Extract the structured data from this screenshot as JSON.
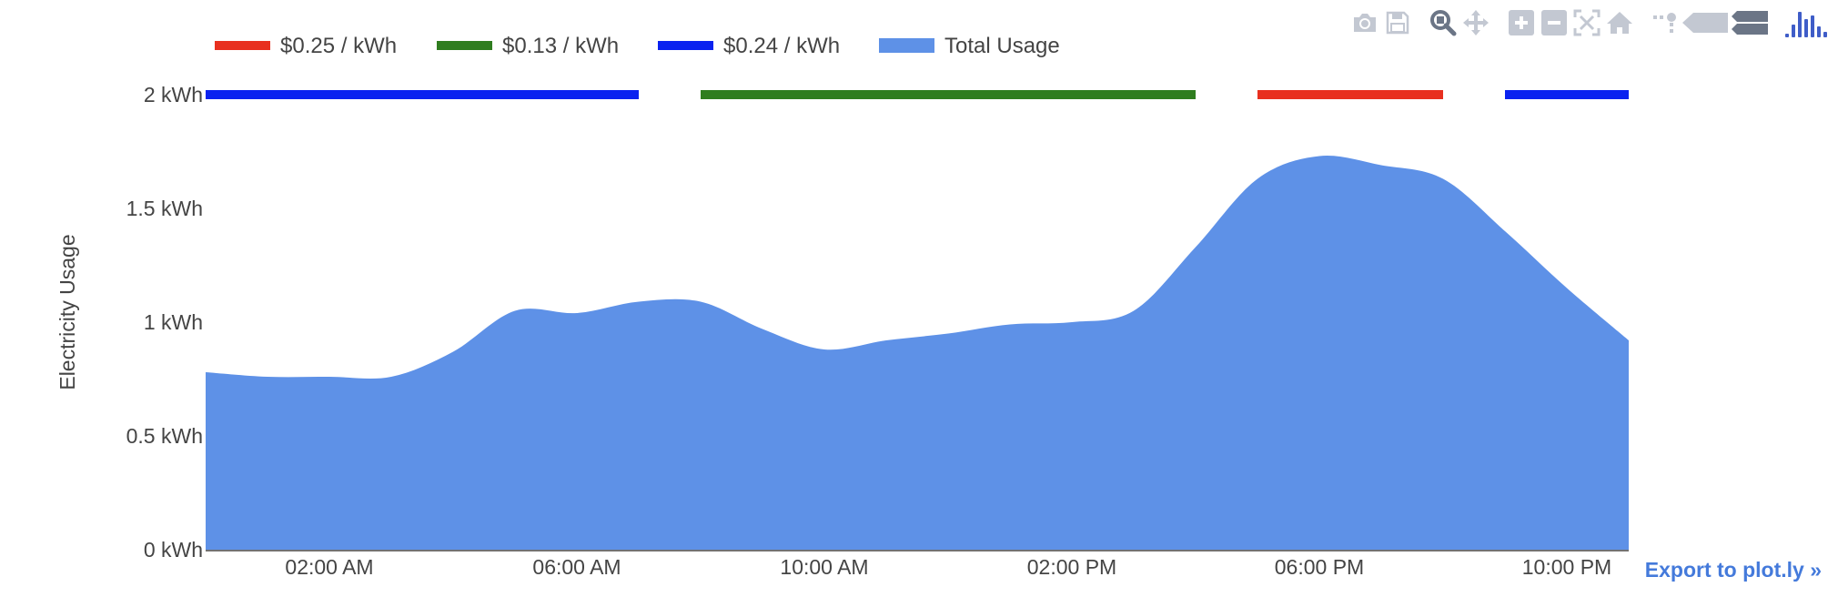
{
  "chart_data": {
    "type": "area",
    "ylabel": "Electricity Usage",
    "ylim": [
      0,
      2
    ],
    "yticks": [
      {
        "value": 0,
        "label": "0 kWh"
      },
      {
        "value": 0.5,
        "label": "0.5 kWh"
      },
      {
        "value": 1,
        "label": "1 kWh"
      },
      {
        "value": 1.5,
        "label": "1.5 kWh"
      },
      {
        "value": 2,
        "label": "2 kWh"
      }
    ],
    "xlim_hours": [
      0,
      23
    ],
    "xticks": [
      {
        "hour": 2,
        "label": "02:00 AM"
      },
      {
        "hour": 6,
        "label": "06:00 AM"
      },
      {
        "hour": 10,
        "label": "10:00 AM"
      },
      {
        "hour": 14,
        "label": "02:00 PM"
      },
      {
        "hour": 18,
        "label": "06:00 PM"
      },
      {
        "hour": 22,
        "label": "10:00 PM"
      }
    ],
    "series": [
      {
        "name": "Total Usage",
        "color": "#5e91e7",
        "x_hours": [
          0,
          1,
          2,
          3,
          4,
          5,
          6,
          7,
          8,
          9,
          10,
          11,
          12,
          13,
          14,
          15,
          16,
          17,
          18,
          19,
          20,
          21,
          22,
          23
        ],
        "values": [
          0.78,
          0.76,
          0.76,
          0.76,
          0.87,
          1.05,
          1.04,
          1.09,
          1.09,
          0.97,
          0.88,
          0.92,
          0.95,
          0.99,
          1.0,
          1.05,
          1.33,
          1.63,
          1.73,
          1.69,
          1.63,
          1.4,
          1.15,
          0.92
        ]
      }
    ],
    "price_bands": [
      {
        "name": "$0.25 / kWh",
        "color": "#e8301f",
        "segments": [
          [
            17,
            20
          ]
        ]
      },
      {
        "name": "$0.13 / kWh",
        "color": "#2f7d1f",
        "segments": [
          [
            8,
            16
          ]
        ]
      },
      {
        "name": "$0.24 / kWh",
        "color": "#0a22f0",
        "segments": [
          [
            0,
            7
          ],
          [
            21,
            23
          ]
        ]
      }
    ],
    "band_level": 2,
    "legend": [
      "$0.25 / kWh",
      "$0.13 / kWh",
      "$0.24 / kWh",
      "Total Usage"
    ],
    "legend_placement": "top-left"
  },
  "modebar": {
    "icons": [
      "camera-icon",
      "save-icon",
      "zoom-icon",
      "pan-icon",
      "zoom-in-icon",
      "zoom-out-icon",
      "autoscale-icon",
      "home-icon",
      "spike-lines-icon",
      "hover-closest-icon",
      "hover-compare-icon",
      "plotly-logo-icon"
    ]
  },
  "export_label": "Export to plot.ly »"
}
